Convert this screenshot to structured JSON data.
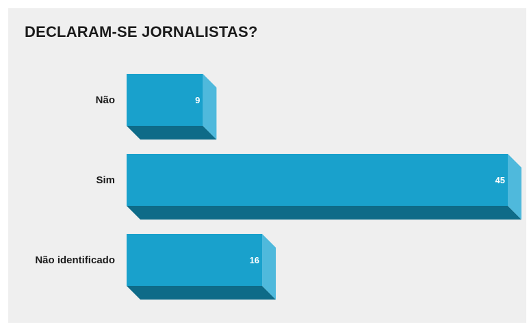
{
  "chart_data": {
    "type": "bar",
    "orientation": "horizontal",
    "title": "DECLARAM-SE JORNALISTAS?",
    "categories": [
      "Não",
      "Sim",
      "Não identificado"
    ],
    "values": [
      9,
      45,
      16
    ],
    "xlabel": "",
    "ylabel": "",
    "xlim": [
      0,
      45
    ],
    "grid": false,
    "colors": {
      "bar_front": "#19a1cc",
      "bar_side": "#4fb9dc",
      "bar_bottom": "#0e6b88",
      "background": "#efefef"
    }
  }
}
